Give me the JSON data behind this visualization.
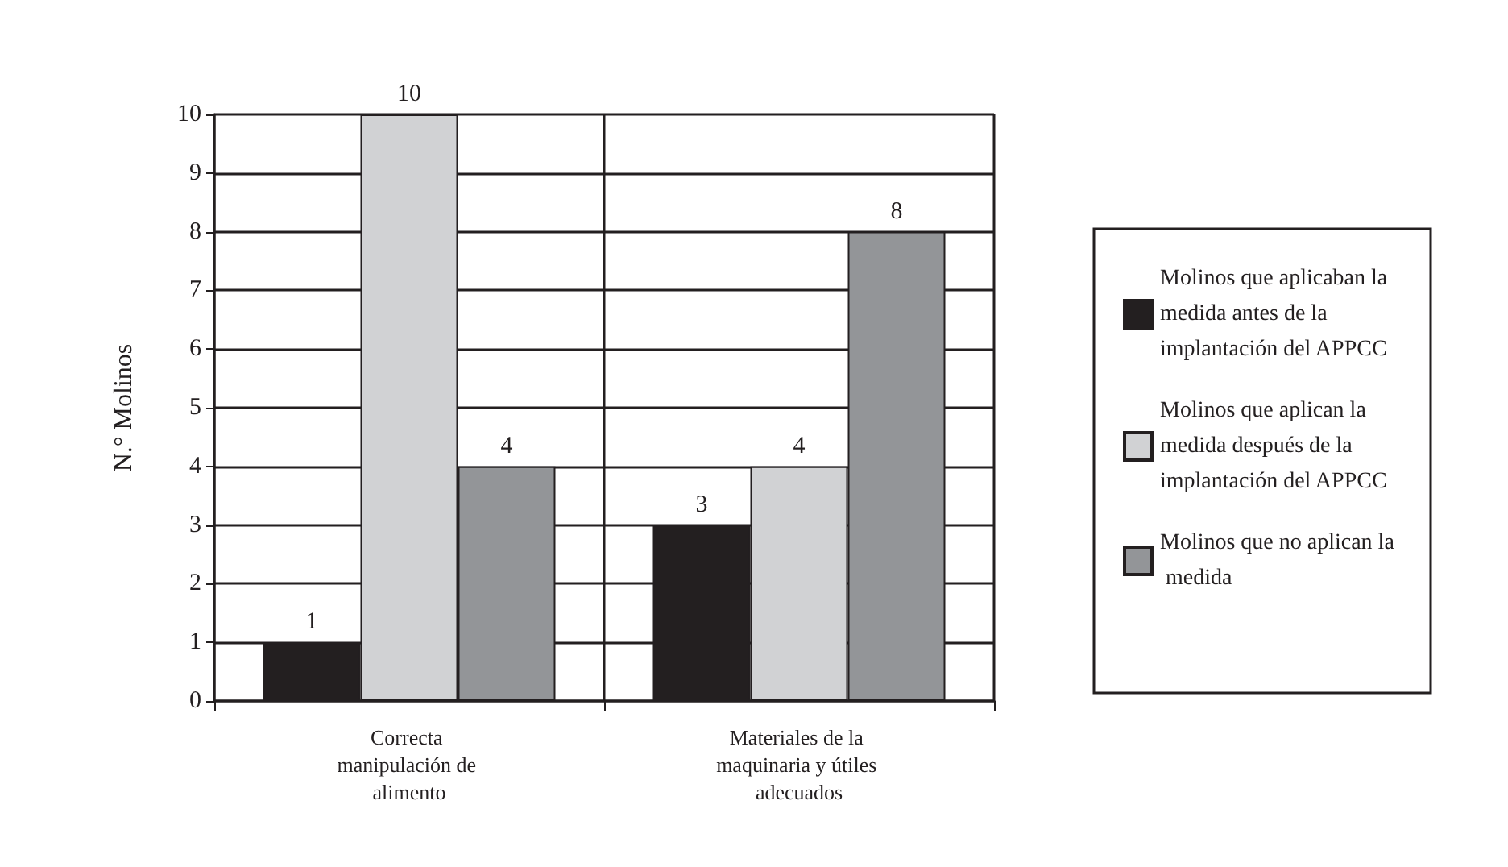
{
  "chart_data": {
    "type": "bar",
    "ylabel": "N.° Molinos",
    "categories": [
      "Correcta manipulación de alimento",
      "Materiales de la maquinaria y útiles adecuados"
    ],
    "series": [
      {
        "name": "Molinos que aplicaban la medida antes de la implantación del APPCC",
        "color": "#231f20",
        "values": [
          1,
          3
        ]
      },
      {
        "name": "Molinos que aplican la medida después de la implantación del APPCC",
        "color": "#d1d2d4",
        "values": [
          10,
          4
        ]
      },
      {
        "name": "Molinos que no aplican la medida",
        "color": "#939598",
        "values": [
          4,
          8
        ]
      }
    ],
    "ylim": [
      0,
      10
    ],
    "yticks": [
      0,
      1,
      2,
      3,
      4,
      5,
      6,
      7,
      8,
      9,
      10
    ],
    "grid": true,
    "legend": "right",
    "data_labels": true
  }
}
